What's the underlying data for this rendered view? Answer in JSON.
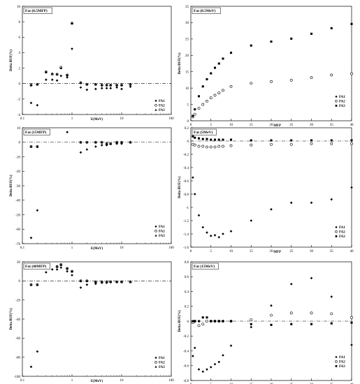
{
  "chart_data": [
    {
      "type": "scatter",
      "title": "Fat (0.5MFP)",
      "xlabel": "E(MeV)",
      "ylabel": "Delta BUF(%)",
      "xscale": "log",
      "xlim": [
        0.1,
        100
      ],
      "ylim": [
        -4,
        10
      ],
      "xticks": [
        0.1,
        1,
        10,
        100
      ],
      "xticklabels": [
        "0.1",
        "1",
        "10",
        "100"
      ],
      "yticks": [
        -4,
        -2,
        0,
        2,
        4,
        6,
        8,
        10
      ],
      "yticklabels": [
        "-4",
        "-2",
        "0",
        "2",
        "4",
        "6",
        "8",
        "10"
      ],
      "grid": false,
      "legend": "bottom-right",
      "series": [
        {
          "name": "FA1",
          "marker": "diamond",
          "x": [
            0.15,
            0.3,
            0.4,
            0.5,
            0.6,
            0.8,
            1,
            1.5,
            2,
            3,
            4,
            5,
            6,
            8,
            10,
            15
          ],
          "y": [
            -2.5,
            0.5,
            0.5,
            0.4,
            1.0,
            0.8,
            4.5,
            -0.5,
            -0.8,
            -0.7,
            -0.6,
            -0.6,
            -0.6,
            -0.5,
            -0.7,
            -0.4
          ]
        },
        {
          "name": "FA2",
          "marker": "circle-open",
          "x": [
            0.15,
            0.2,
            0.3,
            0.4,
            0.5,
            0.6,
            0.8,
            1,
            1.5,
            2,
            3,
            4,
            5,
            6,
            8,
            10,
            15
          ],
          "y": [
            -0.2,
            -0.1,
            1.5,
            1.2,
            1.2,
            2.1,
            1.1,
            7.8,
            0.1,
            -0.1,
            -0.1,
            -0.2,
            -0.2,
            -0.2,
            -0.2,
            -0.2,
            -0.1
          ]
        },
        {
          "name": "FA3",
          "marker": "triangle",
          "x": [
            0.15,
            0.2,
            0.3,
            0.4,
            0.5,
            0.6,
            0.8,
            1,
            1.5,
            2,
            3,
            4,
            5,
            6,
            8,
            10,
            15
          ],
          "y": [
            -0.2,
            -0.1,
            1.5,
            1.3,
            1.2,
            2.0,
            1.1,
            7.8,
            0.1,
            -0.1,
            -0.1,
            -0.2,
            -0.2,
            -0.2,
            -0.2,
            -0.2,
            -0.1
          ]
        },
        {
          "name": "",
          "marker": "diamond",
          "x": [
            0.2
          ],
          "y": [
            -2.8
          ]
        }
      ]
    },
    {
      "type": "scatter",
      "title": "Fat (0.5MeV)",
      "xlabel": "MFP",
      "ylabel": "Delta BUF(%)",
      "xscale": "linear",
      "xlim": [
        0,
        40
      ],
      "ylim": [
        0,
        35
      ],
      "xticks": [
        0,
        5,
        10,
        15,
        20,
        25,
        30,
        35,
        40
      ],
      "xticklabels": [
        "0",
        "5",
        "10",
        "15",
        "20",
        "25",
        "30",
        "35",
        "40"
      ],
      "yticks": [
        0,
        5,
        10,
        15,
        20,
        25,
        30,
        35
      ],
      "yticklabels": [
        "0",
        "5",
        "10",
        "15",
        "20",
        "25",
        "30",
        "35"
      ],
      "grid": false,
      "legend": "bottom-right",
      "series": [
        {
          "name": "FA1",
          "marker": "diamond",
          "x": [
            0.5,
            1,
            2,
            3,
            4,
            5,
            6,
            7,
            8,
            10,
            15,
            20,
            25,
            30,
            35,
            40
          ],
          "y": [
            1.2,
            2.0,
            3.8,
            5.0,
            6.0,
            7.0,
            7.8,
            8.5,
            9.3,
            10.5,
            11.5,
            12.0,
            12.4,
            13.2,
            14.0,
            14.4
          ]
        },
        {
          "name": "FA2",
          "marker": "circle-open",
          "x": [
            0.5,
            1,
            2,
            3,
            4,
            5,
            6,
            7,
            8,
            10,
            15,
            20,
            25,
            30,
            35,
            40
          ],
          "y": [
            1.2,
            2.0,
            3.8,
            5.0,
            6.0,
            7.0,
            7.8,
            8.5,
            9.3,
            10.5,
            11.5,
            12.0,
            12.4,
            13.2,
            14.0,
            14.4
          ]
        },
        {
          "name": "FA3",
          "marker": "square",
          "x": [
            0.5,
            1,
            2,
            3,
            4,
            5,
            6,
            7,
            8,
            10,
            15,
            20,
            25,
            30,
            35,
            40
          ],
          "y": [
            1.5,
            3.5,
            7.5,
            10.5,
            12.7,
            14.5,
            16.2,
            17.5,
            19.0,
            20.8,
            23.0,
            24.2,
            25.1,
            26.6,
            28.3,
            29.6
          ]
        }
      ]
    },
    {
      "type": "scatter",
      "title": "Fat (15MFP)",
      "xlabel": "E(MeV)",
      "ylabel": "Delta BUF(%)",
      "xscale": "log",
      "xlim": [
        0.1,
        100
      ],
      "ylim": [
        -70,
        10
      ],
      "xticks": [
        0.1,
        1,
        10,
        100
      ],
      "xticklabels": [
        "0.1",
        "1",
        "10",
        "100"
      ],
      "yticks": [
        -70,
        -60,
        -50,
        -40,
        -30,
        -20,
        -10,
        0,
        10
      ],
      "yticklabels": [
        "-70",
        "-60",
        "-50",
        "-40",
        "-30",
        "-20",
        "-10",
        "0",
        "10"
      ],
      "grid": false,
      "legend": "bottom-right",
      "series": [
        {
          "name": "FA1",
          "marker": "diamond",
          "x": [
            0.15,
            0.2,
            0.8,
            1.5,
            2,
            3,
            4,
            5,
            6,
            8,
            10
          ],
          "y": [
            -66,
            -47,
            7,
            -7,
            -5,
            -3,
            -2,
            -2,
            -1,
            -1,
            -1
          ]
        },
        {
          "name": "FA2",
          "marker": "circle-open",
          "x": [
            0.15,
            0.2,
            1.5,
            2,
            3,
            4,
            5,
            6,
            8,
            10,
            15
          ],
          "y": [
            -3,
            -3,
            0,
            0,
            0,
            0,
            -1,
            -1,
            0,
            0,
            0
          ]
        },
        {
          "name": "FA3",
          "marker": "triangle",
          "x": [
            0.15,
            0.2,
            1.5,
            2,
            3,
            4,
            5,
            6,
            8,
            10,
            15
          ],
          "y": [
            -3,
            -3,
            0,
            0,
            0,
            0,
            -1,
            -1,
            0,
            0,
            0
          ]
        }
      ]
    },
    {
      "type": "scatter",
      "title": "Fat (5MeV)",
      "xlabel": "MFP",
      "ylabel": "Delta BUF(%)",
      "xscale": "linear",
      "xlim": [
        0,
        40
      ],
      "ylim": [
        -1.6,
        0.2
      ],
      "xticks": [
        0,
        5,
        10,
        15,
        20,
        25,
        30,
        35,
        40
      ],
      "xticklabels": [
        "0",
        "5",
        "10",
        "15",
        "20",
        "25",
        "30",
        "35",
        "40"
      ],
      "yticks": [
        -1.6,
        -1.4,
        -1.2,
        -1,
        -0.8,
        -0.6,
        -0.4,
        -0.2,
        0,
        0.2
      ],
      "yticklabels": [
        "-1.6",
        "-1.4",
        "-1.2",
        "-1",
        "-0.8",
        "-0.6",
        "-0.4",
        "-0.2",
        "0",
        "0.2"
      ],
      "grid": false,
      "legend": "bottom-right",
      "series": [
        {
          "name": "FA1",
          "marker": "diamond",
          "x": [
            0.5,
            1,
            2,
            3,
            4,
            5,
            6,
            7,
            8,
            10,
            15,
            20,
            25,
            30,
            35,
            40
          ],
          "y": [
            -0.55,
            -0.8,
            -1.12,
            -1.3,
            -1.38,
            -1.43,
            -1.42,
            -1.45,
            -1.4,
            -1.36,
            -1.2,
            -1.03,
            -0.93,
            -0.93,
            -0.88,
            -0.7
          ]
        },
        {
          "name": "FA2",
          "marker": "circle-open",
          "x": [
            0.5,
            1,
            2,
            3,
            4,
            5,
            6,
            7,
            8,
            10,
            15,
            20,
            25,
            30,
            35,
            40
          ],
          "y": [
            -0.05,
            -0.06,
            -0.08,
            -0.08,
            -0.09,
            -0.09,
            -0.09,
            -0.08,
            -0.08,
            -0.07,
            -0.06,
            -0.05,
            -0.05,
            -0.04,
            -0.04,
            -0.04
          ]
        },
        {
          "name": "FA3",
          "marker": "square",
          "x": [
            0.5,
            1,
            2,
            3,
            4,
            5,
            6,
            7,
            8,
            10,
            15,
            20,
            25,
            30,
            35,
            40
          ],
          "y": [
            0.07,
            0.05,
            0.04,
            0.03,
            0.03,
            0.02,
            0.02,
            0.02,
            0.02,
            0.02,
            0.01,
            0.01,
            0.01,
            0.01,
            0.01,
            0.01
          ]
        }
      ]
    },
    {
      "type": "scatter",
      "title": "Fat (40MFP)",
      "xlabel": "E(MeV)",
      "ylabel": "Delta BUF(%)",
      "xscale": "log",
      "xlim": [
        0.1,
        100
      ],
      "ylim": [
        -100,
        20
      ],
      "xticks": [
        0.1,
        1,
        10,
        100
      ],
      "xticklabels": [
        "0.1",
        "1",
        "10",
        "100"
      ],
      "yticks": [
        -100,
        -80,
        -60,
        -40,
        -20,
        0,
        20
      ],
      "yticklabels": [
        "-100",
        "-80",
        "-60",
        "-40",
        "-20",
        "0",
        "20"
      ],
      "grid": false,
      "legend": "bottom-right",
      "series": [
        {
          "name": "FA1",
          "marker": "diamond",
          "x": [
            0.15,
            0.2,
            0.3,
            0.4,
            0.5,
            0.6,
            0.8,
            1,
            1.5,
            2,
            3,
            4,
            5,
            6,
            8,
            10
          ],
          "y": [
            -90,
            -74,
            9,
            12,
            12,
            14,
            10,
            6,
            -7,
            -4,
            -3,
            -2,
            -2,
            -1,
            -1,
            -1
          ]
        },
        {
          "name": "FA2",
          "marker": "circle-open",
          "x": [
            0.15,
            0.2,
            0.5,
            0.6,
            0.8,
            1,
            1.5,
            2,
            3,
            4,
            5,
            6,
            8,
            10,
            15
          ],
          "y": [
            -4,
            -4,
            15,
            17,
            13,
            10,
            0,
            0,
            -1,
            -1,
            -1,
            -1,
            -1,
            -1,
            -1
          ]
        },
        {
          "name": "FA3",
          "marker": "triangle",
          "x": [
            0.15,
            0.2,
            0.5,
            0.6,
            0.8,
            1,
            1.5,
            2,
            3,
            4,
            5,
            6,
            8,
            10,
            15
          ],
          "y": [
            -4,
            -4,
            15,
            17,
            13,
            10,
            0,
            0,
            -1,
            -1,
            -1,
            -1,
            -1,
            -1,
            -1
          ]
        }
      ]
    },
    {
      "type": "scatter",
      "title": "Fat (15MeV)",
      "xlabel": "MFP",
      "ylabel": "Delta BUF(%)",
      "xscale": "linear",
      "xlim": [
        0,
        40
      ],
      "ylim": [
        -0.8,
        0.8
      ],
      "xticks": [
        0,
        5,
        10,
        15,
        20,
        25,
        30,
        35,
        40
      ],
      "xticklabels": [
        "0",
        "5",
        "10",
        "15",
        "20",
        "25",
        "30",
        "35",
        "40"
      ],
      "yticks": [
        -0.8,
        -0.6,
        -0.4,
        -0.2,
        0,
        0.2,
        0.4,
        0.6,
        0.8
      ],
      "yticklabels": [
        "-0.8",
        "-0.6",
        "-0.4",
        "-0.2",
        "0",
        "0.2",
        "0.4",
        "0.6",
        "0.8"
      ],
      "grid": false,
      "legend": "bottom-right",
      "series": [
        {
          "name": "FA1",
          "marker": "diamond",
          "x": [
            0.5,
            1,
            2,
            3,
            4,
            5,
            6,
            7,
            8,
            10,
            15,
            20,
            25,
            30,
            35,
            40
          ],
          "y": [
            -0.47,
            -0.36,
            -0.65,
            -0.68,
            -0.65,
            -0.62,
            -0.58,
            -0.55,
            -0.46,
            -0.33,
            -0.08,
            0.21,
            0.5,
            0.58,
            0.33,
            -0.32
          ]
        },
        {
          "name": "FA2",
          "marker": "circle-open",
          "x": [
            0.5,
            1,
            2,
            3,
            4,
            5,
            6,
            7,
            8,
            10,
            15,
            20,
            25,
            30,
            35,
            40
          ],
          "y": [
            -0.02,
            0.0,
            -0.06,
            -0.04,
            0.0,
            0.0,
            0.0,
            0.0,
            0.0,
            0.0,
            0.02,
            0.08,
            0.11,
            0.11,
            0.1,
            0.05
          ]
        },
        {
          "name": "FA3",
          "marker": "square",
          "x": [
            0.5,
            1,
            2,
            3,
            4,
            5,
            6,
            7,
            8,
            10,
            15,
            20,
            25,
            30,
            35,
            40
          ],
          "y": [
            0.0,
            0.0,
            0.0,
            0.05,
            0.05,
            0.0,
            0.0,
            0.0,
            0.0,
            0.0,
            -0.04,
            -0.05,
            -0.04,
            -0.04,
            -0.03,
            -0.02
          ]
        }
      ]
    }
  ]
}
